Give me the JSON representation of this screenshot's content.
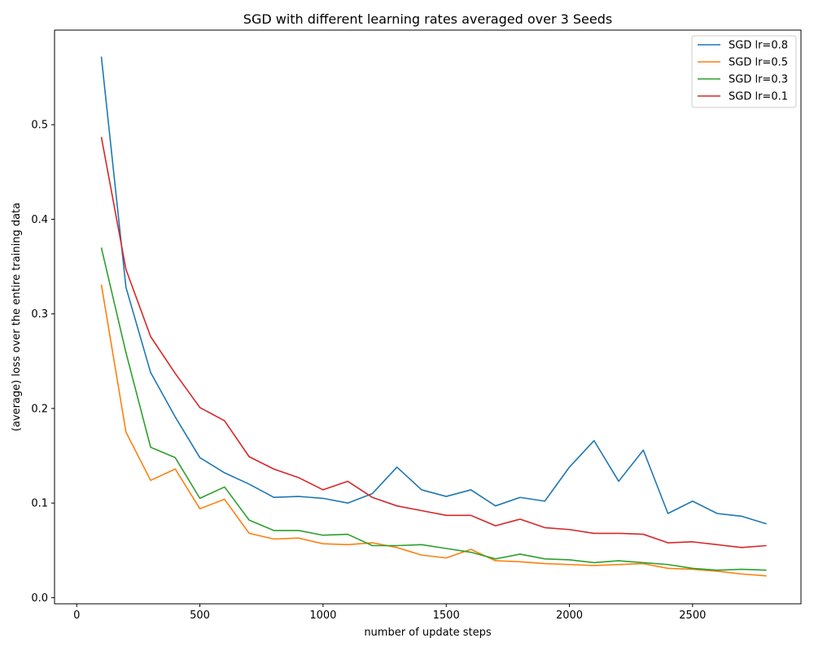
{
  "chart_data": {
    "type": "line",
    "title": "SGD with different learning rates averaged over 3 Seeds",
    "xlabel": "number of update steps",
    "ylabel": "(average) loss over the entire training data",
    "xlim": [
      -90,
      2940
    ],
    "ylim": [
      -0.0065,
      0.6
    ],
    "xticks": [
      0,
      500,
      1000,
      1500,
      2000,
      2500
    ],
    "yticks": [
      0.0,
      0.1,
      0.2,
      0.3,
      0.4,
      0.5
    ],
    "ytick_labels": [
      "0.0",
      "0.1",
      "0.2",
      "0.3",
      "0.4",
      "0.5"
    ],
    "grid": false,
    "legend_position": "top-right",
    "x": [
      100,
      200,
      300,
      400,
      500,
      600,
      700,
      800,
      900,
      1000,
      1100,
      1200,
      1300,
      1400,
      1500,
      1600,
      1700,
      1800,
      1900,
      2000,
      2100,
      2200,
      2300,
      2400,
      2500,
      2600,
      2700,
      2800
    ],
    "series": [
      {
        "name": "SGD lr=0.8",
        "color": "#1f77b4",
        "values": [
          0.572,
          0.328,
          0.238,
          0.191,
          0.148,
          0.132,
          0.12,
          0.106,
          0.107,
          0.105,
          0.1,
          0.11,
          0.138,
          0.114,
          0.107,
          0.114,
          0.097,
          0.106,
          0.102,
          0.138,
          0.166,
          0.123,
          0.156,
          0.089,
          0.102,
          0.089,
          0.086,
          0.078
        ]
      },
      {
        "name": "SGD lr=0.5",
        "color": "#ff7f0e",
        "values": [
          0.331,
          0.175,
          0.124,
          0.136,
          0.094,
          0.104,
          0.068,
          0.062,
          0.063,
          0.057,
          0.056,
          0.058,
          0.053,
          0.045,
          0.042,
          0.051,
          0.039,
          0.038,
          0.036,
          0.035,
          0.034,
          0.035,
          0.036,
          0.031,
          0.03,
          0.028,
          0.025,
          0.023
        ]
      },
      {
        "name": "SGD lr=0.3",
        "color": "#2ca02c",
        "values": [
          0.37,
          0.259,
          0.159,
          0.148,
          0.105,
          0.117,
          0.082,
          0.071,
          0.071,
          0.066,
          0.067,
          0.055,
          0.055,
          0.056,
          0.052,
          0.048,
          0.041,
          0.046,
          0.041,
          0.04,
          0.037,
          0.039,
          0.037,
          0.035,
          0.031,
          0.029,
          0.03,
          0.029
        ]
      },
      {
        "name": "SGD lr=0.1",
        "color": "#d62728",
        "values": [
          0.487,
          0.347,
          0.276,
          0.237,
          0.201,
          0.187,
          0.149,
          0.136,
          0.127,
          0.114,
          0.123,
          0.106,
          0.097,
          0.092,
          0.087,
          0.087,
          0.076,
          0.083,
          0.074,
          0.072,
          0.068,
          0.068,
          0.067,
          0.058,
          0.059,
          0.056,
          0.053,
          0.055
        ]
      }
    ]
  }
}
